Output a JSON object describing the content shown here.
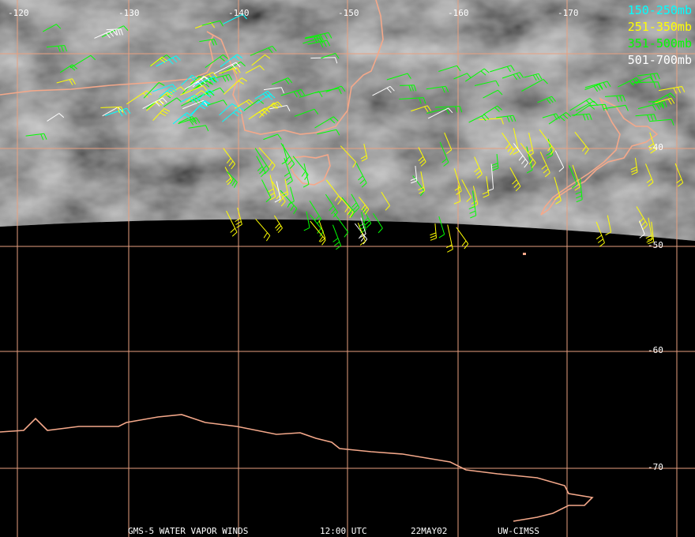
{
  "map": {
    "longitude_labels": [
      "-120",
      "-130",
      "-140",
      "-150",
      "-160",
      "-170"
    ],
    "latitude_labels": [
      "-40",
      "-50",
      "-60",
      "-70"
    ],
    "legend": [
      {
        "label": "150-250mb",
        "color": "#00ffff"
      },
      {
        "label": "251-350mb",
        "color": "#ffff00"
      },
      {
        "label": "351-500mb",
        "color": "#00ff00"
      },
      {
        "label": "501-700mb",
        "color": "#ffffff"
      }
    ],
    "footer": [
      "GMS-5 WATER VAPOR WINDS",
      "12:00 UTC",
      "22MAY02",
      "UW-CIMSS"
    ]
  }
}
